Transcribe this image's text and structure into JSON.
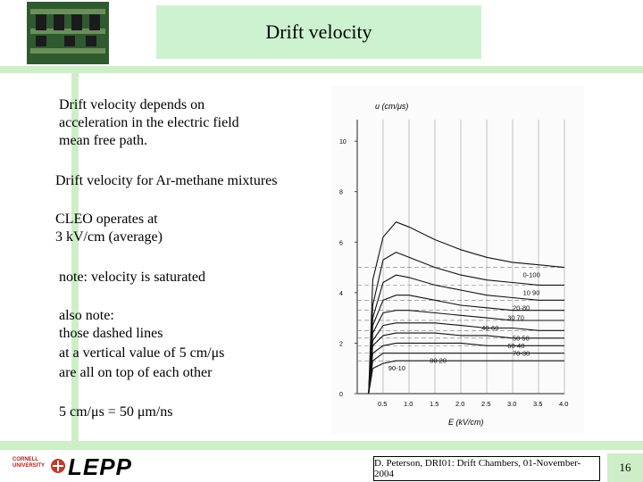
{
  "title": "Drift velocity",
  "body": {
    "intro": [
      "Drift velocity depends on",
      "acceleration in the electric field",
      "mean free path."
    ],
    "mixtures": "Drift velocity for  Ar-methane  mixtures",
    "cleo": [
      "CLEO operates at",
      "3 kV/cm (average)"
    ],
    "note": "note: velocity is saturated",
    "also": [
      "also note:",
      "those dashed lines",
      "at a vertical value of   5 cm/μs",
      "are all on top of each other"
    ],
    "conversion": "5 cm/μs  =  50  μm/ns"
  },
  "plot": {
    "ylabel": "u (cm/μs)",
    "xlabel": "E (kV/cm)",
    "yticks": [
      "10",
      "8",
      "6",
      "4",
      "2",
      "0"
    ],
    "xticks": [
      "0.5",
      "1.0",
      "1.5",
      "2.0",
      "2.5",
      "3.0",
      "3.5",
      "4.0"
    ],
    "curve_labels": [
      "0-100",
      "10 90",
      "20-80",
      "30 70",
      "40-60",
      "50 50",
      "60-40",
      "70-30",
      "80 20",
      "90-10"
    ]
  },
  "chart_data": {
    "type": "line",
    "xlabel": "E (kV/cm)",
    "ylabel": "u (cm/μs)",
    "xlim": [
      0,
      4.0
    ],
    "series": [
      {
        "name": "0-100",
        "x": [
          0.3,
          0.5,
          0.75,
          1.0,
          1.5,
          2.0,
          2.5,
          3.0,
          3.5,
          4.0
        ],
        "y": [
          4.5,
          6.2,
          6.8,
          6.6,
          6.1,
          5.7,
          5.4,
          5.2,
          5.1,
          5.0
        ]
      },
      {
        "name": "10 90",
        "x": [
          0.3,
          0.5,
          0.75,
          1.0,
          1.5,
          2.0,
          2.5,
          3.0,
          3.5,
          4.0
        ],
        "y": [
          3.5,
          5.3,
          5.6,
          5.4,
          5.0,
          4.7,
          4.5,
          4.4,
          4.3,
          4.3
        ]
      },
      {
        "name": "20-80",
        "x": [
          0.3,
          0.5,
          0.75,
          1.0,
          1.5,
          2.0,
          2.5,
          3.0,
          3.5,
          4.0
        ],
        "y": [
          3.0,
          4.4,
          4.7,
          4.6,
          4.3,
          4.1,
          3.9,
          3.8,
          3.7,
          3.7
        ]
      },
      {
        "name": "30 70",
        "x": [
          0.3,
          0.5,
          0.75,
          1.0,
          1.5,
          2.0,
          2.5,
          3.0,
          3.5,
          4.0
        ],
        "y": [
          2.7,
          3.7,
          3.9,
          3.9,
          3.7,
          3.5,
          3.4,
          3.3,
          3.3,
          3.3
        ]
      },
      {
        "name": "40-60",
        "x": [
          0.3,
          0.5,
          0.75,
          1.0,
          1.5,
          2.0,
          2.5,
          3.0,
          3.5,
          4.0
        ],
        "y": [
          2.4,
          3.2,
          3.3,
          3.3,
          3.2,
          3.1,
          3.0,
          2.9,
          2.9,
          2.9
        ]
      },
      {
        "name": "50 50",
        "x": [
          0.3,
          0.5,
          0.75,
          1.0,
          1.5,
          2.0,
          2.5,
          3.0,
          3.5,
          4.0
        ],
        "y": [
          2.1,
          2.7,
          2.8,
          2.8,
          2.8,
          2.7,
          2.6,
          2.6,
          2.5,
          2.5
        ]
      },
      {
        "name": "60-40",
        "x": [
          0.3,
          0.5,
          0.75,
          1.0,
          1.5,
          2.0,
          2.5,
          3.0,
          3.5,
          4.0
        ],
        "y": [
          1.9,
          2.3,
          2.4,
          2.4,
          2.4,
          2.3,
          2.3,
          2.2,
          2.2,
          2.2
        ]
      },
      {
        "name": "70-30",
        "x": [
          0.3,
          0.5,
          0.75,
          1.0,
          1.5,
          2.0,
          2.5,
          3.0,
          3.5,
          4.0
        ],
        "y": [
          1.6,
          1.9,
          2.0,
          2.0,
          2.0,
          2.0,
          1.9,
          1.9,
          1.9,
          1.9
        ]
      },
      {
        "name": "80 20",
        "x": [
          0.3,
          0.5,
          0.75,
          1.0,
          1.5,
          2.0,
          2.5,
          3.0,
          3.5,
          4.0
        ],
        "y": [
          1.3,
          1.6,
          1.6,
          1.6,
          1.6,
          1.6,
          1.6,
          1.6,
          1.6,
          1.6
        ]
      },
      {
        "name": "90-10",
        "x": [
          0.3,
          0.5,
          0.75,
          1.0,
          1.5,
          2.0,
          2.5,
          3.0,
          3.5,
          4.0
        ],
        "y": [
          1.0,
          1.2,
          1.3,
          1.3,
          1.3,
          1.3,
          1.3,
          1.3,
          1.3,
          1.3
        ]
      }
    ]
  },
  "footer": {
    "logo_text": "LEPP",
    "cornell": "CORNELL UNIVERSITY",
    "citation": "D. Peterson, DRI01: Drift Chambers, 01-November-2004",
    "page": "16"
  }
}
